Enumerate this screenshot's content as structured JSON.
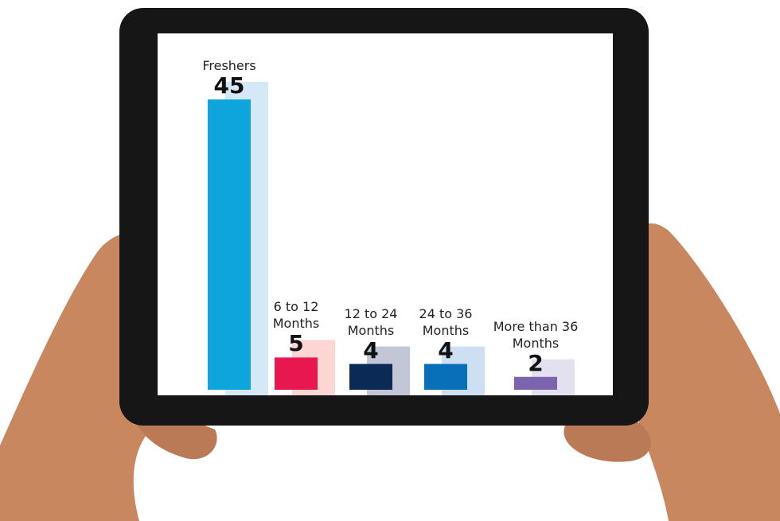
{
  "chart_data": {
    "type": "bar",
    "categories": [
      "Freshers",
      "6 to 12 Months",
      "12 to 24 Months",
      "24 to 36 Months",
      "More than 36 Months"
    ],
    "values": [
      45,
      5,
      4,
      4,
      2
    ],
    "colors": [
      "#0ea5dc",
      "#e8174f",
      "#0b2a55",
      "#0870b8",
      "#7b63ae"
    ],
    "shadow_colors": [
      "#d4e8f7",
      "#fbd6d3",
      "#c3c6d6",
      "#cddff2",
      "#e3e0ef"
    ]
  }
}
